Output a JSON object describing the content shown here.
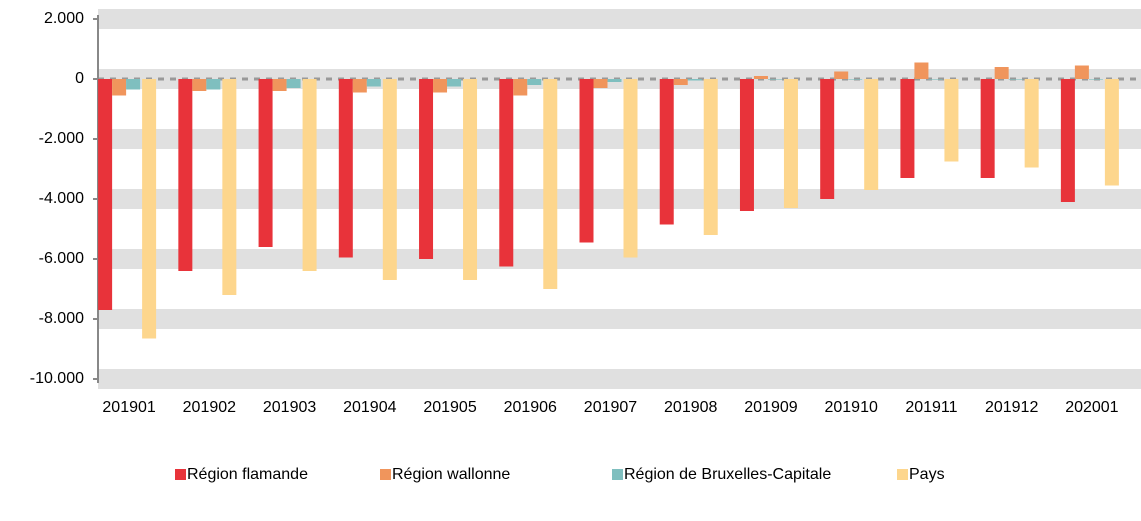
{
  "chart_data": {
    "type": "bar",
    "categories": [
      "201901",
      "201902",
      "201903",
      "201904",
      "201905",
      "201906",
      "201907",
      "201908",
      "201909",
      "201910",
      "201911",
      "201912",
      "202001"
    ],
    "series": [
      {
        "name": "Région flamande",
        "color": "#e8333a",
        "values": [
          -7700,
          -6400,
          -5600,
          -5950,
          -6000,
          -6250,
          -5450,
          -4850,
          -4400,
          -4000,
          -3300,
          -3300,
          -4100
        ]
      },
      {
        "name": "Région wallonne",
        "color": "#f0955c",
        "values": [
          -550,
          -400,
          -400,
          -450,
          -450,
          -550,
          -300,
          -200,
          100,
          250,
          550,
          400,
          450
        ]
      },
      {
        "name": "Région de Bruxelles-Capitale",
        "color": "#7fbfbf",
        "values": [
          -350,
          -350,
          -300,
          -250,
          -250,
          -200,
          -100,
          -50,
          -20,
          -20,
          -20,
          -20,
          -20
        ]
      },
      {
        "name": "Pays",
        "color": "#fdd68d",
        "values": [
          -8650,
          -7200,
          -6400,
          -6700,
          -6700,
          -7000,
          -5950,
          -5200,
          -4300,
          -3700,
          -2750,
          -2950,
          -3550
        ]
      }
    ],
    "ylim": [
      -10000,
      2000
    ],
    "yticks": [
      {
        "value": -10000,
        "label": "-10.000"
      },
      {
        "value": -8000,
        "label": "-8.000"
      },
      {
        "value": -6000,
        "label": "-6.000"
      },
      {
        "value": -4000,
        "label": "-4.000"
      },
      {
        "value": -2000,
        "label": "-2.000"
      },
      0,
      {
        "value": 2000,
        "label": "2.000"
      }
    ],
    "grid": true
  }
}
